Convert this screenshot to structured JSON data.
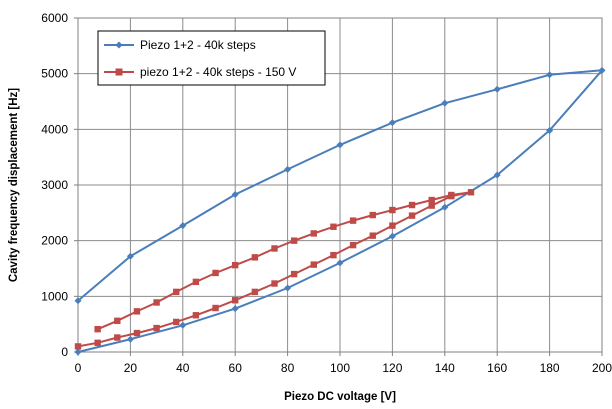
{
  "chart_data": {
    "type": "line",
    "title": "",
    "xlabel": "Piezo DC voltage [V]",
    "ylabel": "Cavity frequency displacement [Hz]",
    "xlim": [
      0,
      200
    ],
    "ylim": [
      0,
      6000
    ],
    "x_ticks": [
      "0",
      "20",
      "40",
      "60",
      "80",
      "100",
      "120",
      "140",
      "160",
      "180",
      "200"
    ],
    "y_ticks": [
      "0",
      "1000",
      "2000",
      "3000",
      "4000",
      "5000",
      "6000"
    ],
    "grid": true,
    "legend_position": "top-left",
    "series": [
      {
        "name": "Piezo 1+2 - 40k steps",
        "color": "#4a7ebb",
        "marker": "diamond",
        "points": [
          [
            0,
            0
          ],
          [
            20,
            230
          ],
          [
            40,
            480
          ],
          [
            60,
            780
          ],
          [
            80,
            1150
          ],
          [
            100,
            1600
          ],
          [
            120,
            2080
          ],
          [
            140,
            2600
          ],
          [
            160,
            3180
          ],
          [
            180,
            3980
          ],
          [
            200,
            5060
          ],
          [
            180,
            4980
          ],
          [
            160,
            4720
          ],
          [
            140,
            4470
          ],
          [
            120,
            4120
          ],
          [
            100,
            3720
          ],
          [
            80,
            3280
          ],
          [
            60,
            2830
          ],
          [
            40,
            2270
          ],
          [
            20,
            1720
          ],
          [
            0,
            920
          ]
        ]
      },
      {
        "name": "piezo 1+2 - 40k steps - 150 V",
        "color": "#be4b48",
        "marker": "square",
        "points": [
          [
            0,
            100
          ],
          [
            7.5,
            165
          ],
          [
            15,
            260
          ],
          [
            22.5,
            340
          ],
          [
            30,
            430
          ],
          [
            37.5,
            540
          ],
          [
            45,
            660
          ],
          [
            52.5,
            790
          ],
          [
            60,
            930
          ],
          [
            67.5,
            1080
          ],
          [
            75,
            1230
          ],
          [
            82.5,
            1400
          ],
          [
            90,
            1570
          ],
          [
            97.5,
            1740
          ],
          [
            105,
            1920
          ],
          [
            112.5,
            2090
          ],
          [
            120,
            2270
          ],
          [
            127.5,
            2450
          ],
          [
            135,
            2630
          ],
          [
            142.5,
            2800
          ],
          [
            150,
            2870
          ],
          [
            142.5,
            2820
          ],
          [
            135,
            2730
          ],
          [
            127.5,
            2640
          ],
          [
            120,
            2550
          ],
          [
            112.5,
            2460
          ],
          [
            105,
            2360
          ],
          [
            97.5,
            2250
          ],
          [
            90,
            2130
          ],
          [
            82.5,
            2000
          ],
          [
            75,
            1860
          ],
          [
            67.5,
            1700
          ],
          [
            60,
            1560
          ],
          [
            52.5,
            1420
          ],
          [
            45,
            1260
          ],
          [
            37.5,
            1080
          ],
          [
            30,
            890
          ],
          [
            22.5,
            730
          ],
          [
            15,
            560
          ],
          [
            7.5,
            410
          ]
        ]
      }
    ]
  }
}
